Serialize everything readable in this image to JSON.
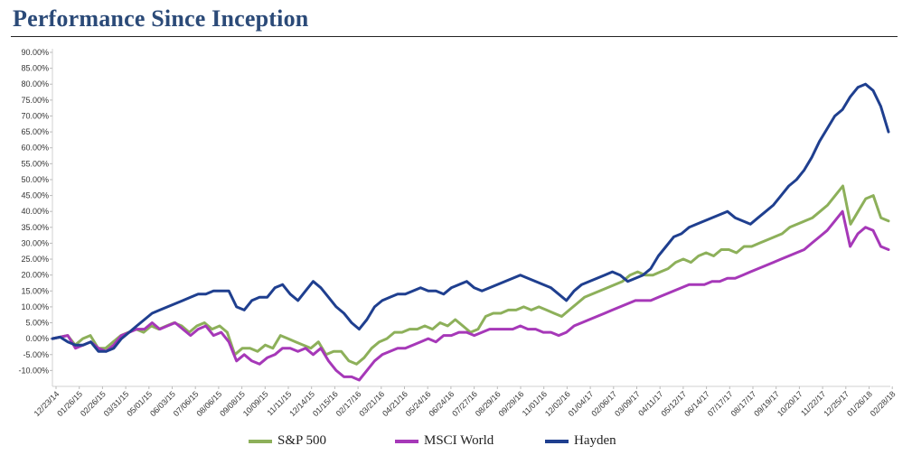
{
  "chart_data": {
    "type": "line",
    "title": "Performance Since Inception",
    "xlabel": "",
    "ylabel": "",
    "ylim": [
      -15,
      90
    ],
    "y_ticks": [
      "90.00%",
      "85.00%",
      "80.00%",
      "75.00%",
      "70.00%",
      "65.00%",
      "60.00%",
      "55.00%",
      "50.00%",
      "45.00%",
      "40.00%",
      "35.00%",
      "30.00%",
      "25.00%",
      "20.00%",
      "15.00%",
      "10.00%",
      "5.00%",
      "0.00%",
      "-5.00%",
      "-10.00%"
    ],
    "y_tick_values": [
      90,
      85,
      80,
      75,
      70,
      65,
      60,
      55,
      50,
      45,
      40,
      35,
      30,
      25,
      20,
      15,
      10,
      5,
      0,
      -5,
      -10
    ],
    "x_ticks": [
      "12/23/14",
      "01/26/15",
      "02/26/15",
      "03/31/15",
      "05/01/15",
      "06/03/15",
      "07/06/15",
      "08/06/15",
      "09/08/15",
      "10/09/15",
      "11/11/15",
      "12/14/15",
      "01/15/16",
      "02/17/16",
      "03/21/16",
      "04/21/16",
      "05/24/16",
      "06/24/16",
      "07/27/16",
      "08/29/16",
      "09/29/16",
      "11/01/16",
      "12/02/16",
      "01/04/17",
      "02/06/17",
      "03/09/17",
      "04/11/17",
      "05/12/17",
      "06/14/17",
      "07/17/17",
      "08/17/17",
      "09/19/17",
      "10/20/17",
      "11/22/17",
      "12/25/17",
      "01/26/18",
      "02/28/18"
    ],
    "series": [
      {
        "name": "S&P 500",
        "color": "#8db05a",
        "values": [
          0,
          0.5,
          1,
          -2,
          0,
          1,
          -3,
          -3,
          -1,
          1,
          2,
          3,
          2,
          4,
          3,
          4,
          5,
          4,
          2,
          4,
          5,
          3,
          4,
          2,
          -5,
          -3,
          -3,
          -4,
          -2,
          -3,
          1,
          0,
          -1,
          -2,
          -3,
          -1,
          -5,
          -4,
          -4,
          -7,
          -8,
          -6,
          -3,
          -1,
          0,
          2,
          2,
          3,
          3,
          4,
          3,
          5,
          4,
          6,
          4,
          2,
          3,
          7,
          8,
          8,
          9,
          9,
          10,
          9,
          10,
          9,
          8,
          7,
          9,
          11,
          13,
          14,
          15,
          16,
          17,
          18,
          20,
          21,
          20,
          20,
          21,
          22,
          24,
          25,
          24,
          26,
          27,
          26,
          28,
          28,
          27,
          29,
          29,
          30,
          31,
          32,
          33,
          35,
          36,
          37,
          38,
          40,
          42,
          45,
          48,
          36,
          40,
          44,
          45,
          38,
          37
        ]
      },
      {
        "name": "MSCI World",
        "color": "#a638b8",
        "values": [
          0,
          0.5,
          1,
          -3,
          -2,
          -1,
          -3,
          -4,
          -2,
          1,
          2,
          3,
          3,
          5,
          3,
          4,
          5,
          3,
          1,
          3,
          4,
          1,
          2,
          -1,
          -7,
          -5,
          -7,
          -8,
          -6,
          -5,
          -3,
          -3,
          -4,
          -3,
          -5,
          -3,
          -7,
          -10,
          -12,
          -12,
          -13,
          -10,
          -7,
          -5,
          -4,
          -3,
          -3,
          -2,
          -1,
          0,
          -1,
          1,
          1,
          2,
          2,
          1,
          2,
          3,
          3,
          3,
          3,
          4,
          3,
          3,
          2,
          2,
          1,
          2,
          4,
          5,
          6,
          7,
          8,
          9,
          10,
          11,
          12,
          12,
          12,
          13,
          14,
          15,
          16,
          17,
          17,
          17,
          18,
          18,
          19,
          19,
          20,
          21,
          22,
          23,
          24,
          25,
          26,
          27,
          28,
          30,
          32,
          34,
          37,
          40,
          29,
          33,
          35,
          34,
          29,
          28
        ]
      },
      {
        "name": "Hayden",
        "color": "#1f3f8f",
        "values": [
          0,
          0.5,
          -1,
          -2,
          -2,
          -1,
          -4,
          -4,
          -3,
          0,
          2,
          4,
          6,
          8,
          9,
          10,
          11,
          12,
          13,
          14,
          14,
          15,
          15,
          15,
          10,
          9,
          12,
          13,
          13,
          16,
          17,
          14,
          12,
          15,
          18,
          16,
          13,
          10,
          8,
          5,
          3,
          6,
          10,
          12,
          13,
          14,
          14,
          15,
          16,
          15,
          15,
          14,
          16,
          17,
          18,
          16,
          15,
          16,
          17,
          18,
          19,
          20,
          19,
          18,
          17,
          16,
          14,
          12,
          15,
          17,
          18,
          19,
          20,
          21,
          20,
          18,
          19,
          20,
          22,
          26,
          29,
          32,
          33,
          35,
          36,
          37,
          38,
          39,
          40,
          38,
          37,
          36,
          38,
          40,
          42,
          45,
          48,
          50,
          53,
          57,
          62,
          66,
          70,
          72,
          76,
          79,
          80,
          78,
          73,
          65
        ]
      }
    ],
    "legend": [
      {
        "label": "S&P 500",
        "color": "#8db05a"
      },
      {
        "label": "MSCI World",
        "color": "#a638b8"
      },
      {
        "label": "Hayden",
        "color": "#1f3f8f"
      }
    ],
    "legend_position": "bottom",
    "grid": false
  }
}
